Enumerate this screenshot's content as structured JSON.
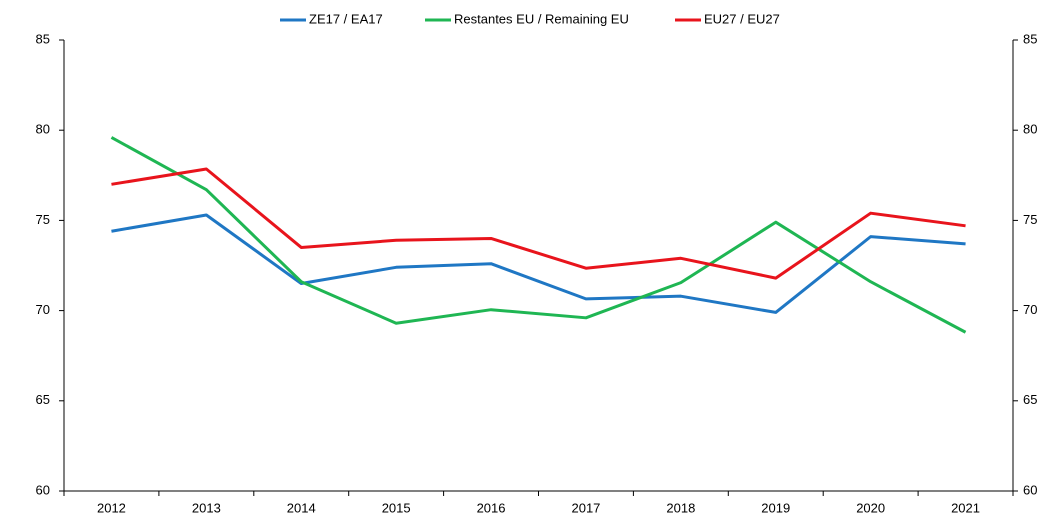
{
  "chart_data": {
    "type": "line",
    "categories": [
      "2012",
      "2013",
      "2014",
      "2015",
      "2016",
      "2017",
      "2018",
      "2019",
      "2020",
      "2021"
    ],
    "series": [
      {
        "name": "ZE17 / EA17",
        "color": "#1f77c4",
        "values": [
          74.4,
          75.3,
          71.5,
          72.4,
          72.6,
          70.65,
          70.8,
          69.9,
          74.1,
          73.7
        ]
      },
      {
        "name": "Restantes EU / Remaining EU",
        "color": "#1fb653",
        "values": [
          79.6,
          76.7,
          71.6,
          69.3,
          70.05,
          69.6,
          71.55,
          74.9,
          71.6,
          68.8
        ]
      },
      {
        "name": "EU27 / EU27",
        "color": "#e8141c",
        "values": [
          77.0,
          77.85,
          73.5,
          73.9,
          74.0,
          72.35,
          72.9,
          71.8,
          75.4,
          74.7
        ]
      }
    ],
    "ylim": [
      60,
      85
    ],
    "yticks": [
      60,
      65,
      70,
      75,
      80,
      85
    ],
    "y2lim": [
      60,
      85
    ],
    "y2ticks": [
      60,
      65,
      70,
      75,
      80,
      85
    ],
    "legend": "top"
  }
}
